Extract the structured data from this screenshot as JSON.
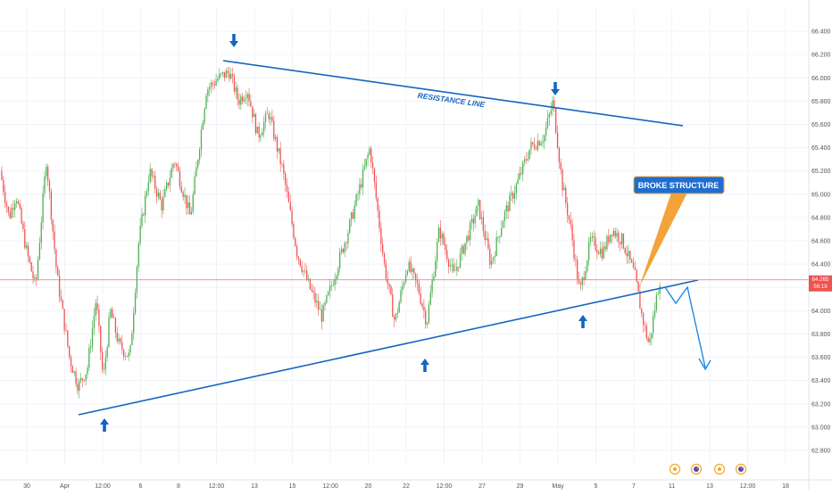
{
  "colors": {
    "background": "#ffffff",
    "grid": "#f0f3fa",
    "up_candle": "#4caf50",
    "down_candle": "#ef5350",
    "drawing": "#1565c0",
    "last_price_line": "#e57373",
    "price_tag": "#ef5350",
    "callout_fill": "#1e6ed1",
    "callout_text": "#ffffff",
    "axis_text": "#555555"
  },
  "chart_data": {
    "type": "candlestick",
    "y_axis": {
      "position": "right",
      "ylim": [
        62.8,
        66.5
      ],
      "ticks": [
        "66.400",
        "66.200",
        "66.000",
        "65.800",
        "65.600",
        "65.400",
        "65.200",
        "65.000",
        "64.800",
        "64.600",
        "64.400",
        "64.200",
        "64.000",
        "63.800",
        "63.600",
        "63.400",
        "63.200",
        "63.000",
        "62.800"
      ]
    },
    "x_axis": {
      "ticks": [
        "30",
        "Apr",
        "12:00",
        "6",
        "8",
        "12:00",
        "13",
        "15",
        "12:00",
        "20",
        "22",
        "12:00",
        "27",
        "29",
        "May",
        "5",
        "7",
        "11",
        "13",
        "12:00",
        "18"
      ]
    },
    "last_price": {
      "value": "64.265",
      "countdown": "56:19"
    },
    "candle_count": 400,
    "price_path": [
      {
        "i": 0,
        "p": 65.2
      },
      {
        "i": 10,
        "p": 64.8
      },
      {
        "i": 18,
        "p": 65.0
      },
      {
        "i": 30,
        "p": 64.5
      },
      {
        "i": 40,
        "p": 64.2
      },
      {
        "i": 52,
        "p": 65.3
      },
      {
        "i": 64,
        "p": 64.3
      },
      {
        "i": 78,
        "p": 63.6
      },
      {
        "i": 88,
        "p": 63.35
      },
      {
        "i": 98,
        "p": 63.5
      },
      {
        "i": 108,
        "p": 64.1
      },
      {
        "i": 116,
        "p": 63.4
      },
      {
        "i": 124,
        "p": 64.0
      },
      {
        "i": 134,
        "p": 63.7
      },
      {
        "i": 146,
        "p": 63.6
      },
      {
        "i": 156,
        "p": 64.6
      },
      {
        "i": 168,
        "p": 65.2
      },
      {
        "i": 182,
        "p": 64.9
      },
      {
        "i": 196,
        "p": 65.3
      },
      {
        "i": 214,
        "p": 64.8
      },
      {
        "i": 232,
        "p": 65.9
      },
      {
        "i": 246,
        "p": 66.0
      },
      {
        "i": 258,
        "p": 66.05
      },
      {
        "i": 268,
        "p": 65.8
      },
      {
        "i": 278,
        "p": 65.9
      },
      {
        "i": 290,
        "p": 65.5
      },
      {
        "i": 302,
        "p": 65.7
      },
      {
        "i": 318,
        "p": 65.2
      },
      {
        "i": 334,
        "p": 64.5
      },
      {
        "i": 348,
        "p": 64.2
      },
      {
        "i": 362,
        "p": 63.95
      },
      {
        "i": 376,
        "p": 64.3
      },
      {
        "i": 392,
        "p": 64.7
      },
      {
        "i": 406,
        "p": 65.1
      },
      {
        "i": 416,
        "p": 65.4
      },
      {
        "i": 432,
        "p": 64.4
      },
      {
        "i": 444,
        "p": 63.9
      },
      {
        "i": 458,
        "p": 64.4
      },
      {
        "i": 470,
        "p": 64.2
      },
      {
        "i": 480,
        "p": 63.9
      },
      {
        "i": 494,
        "p": 64.7
      },
      {
        "i": 510,
        "p": 64.3
      },
      {
        "i": 524,
        "p": 64.6
      },
      {
        "i": 538,
        "p": 64.9
      },
      {
        "i": 552,
        "p": 64.4
      },
      {
        "i": 566,
        "p": 64.8
      },
      {
        "i": 582,
        "p": 65.1
      },
      {
        "i": 596,
        "p": 65.4
      },
      {
        "i": 612,
        "p": 65.5
      },
      {
        "i": 622,
        "p": 65.8
      },
      {
        "i": 632,
        "p": 65.1
      },
      {
        "i": 642,
        "p": 64.7
      },
      {
        "i": 652,
        "p": 64.15
      },
      {
        "i": 664,
        "p": 64.6
      },
      {
        "i": 678,
        "p": 64.5
      },
      {
        "i": 688,
        "p": 64.7
      },
      {
        "i": 700,
        "p": 64.6
      },
      {
        "i": 714,
        "p": 64.3
      },
      {
        "i": 722,
        "p": 63.95
      },
      {
        "i": 730,
        "p": 63.7
      },
      {
        "i": 738,
        "p": 64.1
      },
      {
        "i": 742,
        "p": 64.27
      }
    ],
    "annotations": {
      "resistance_label": "RESISTANCE LINE",
      "callout_label": "BROKE STRUCTURE"
    }
  },
  "event_markers": [
    "earnings-icon",
    "flag-icon",
    "earnings-icon",
    "flag-icon"
  ]
}
